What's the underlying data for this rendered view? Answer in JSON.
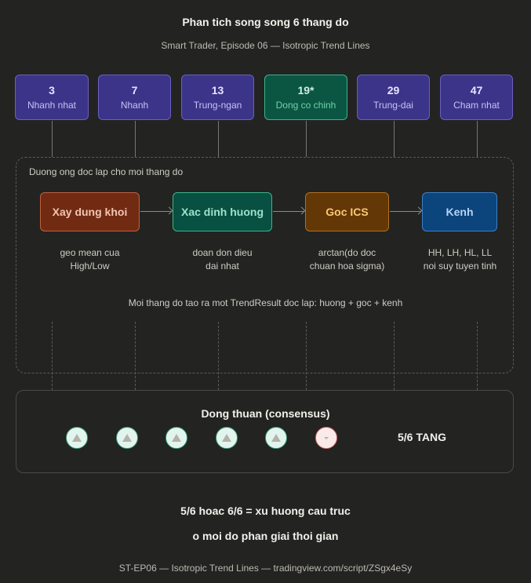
{
  "title": "Phan tich song song 6 thang do",
  "subtitle": "Smart Trader, Episode 06 — Isotropic Trend Lines",
  "scales": [
    {
      "value": "3",
      "label": "Nhanh nhat"
    },
    {
      "value": "7",
      "label": "Nhanh"
    },
    {
      "value": "13",
      "label": "Trung-ngan"
    },
    {
      "value": "19*",
      "label": "Dong co chinh"
    },
    {
      "value": "29",
      "label": "Trung-dai"
    },
    {
      "value": "47",
      "label": "Cham nhat"
    }
  ],
  "pipeline": {
    "label": "Duong ong doc lap cho moi thang do",
    "stages": [
      {
        "name": "Xay dung khoi",
        "desc1": "geo mean cua",
        "desc2": "High/Low",
        "color": "#712b13"
      },
      {
        "name": "Xac dinh huong",
        "desc1": "doan don dieu",
        "desc2": "dai nhat",
        "color": "#085041"
      },
      {
        "name": "Goc ICS",
        "desc1": "arctan(do doc",
        "desc2": "chuan hoa sigma)",
        "color": "#633806"
      },
      {
        "name": "Kenh",
        "desc1": "HH, LH, HL, LL",
        "desc2": "noi suy tuyen tinh",
        "color": "#0c447c"
      }
    ],
    "note": "Moi thang do tao ra mot TrendResult doc lap: huong + goc + kenh"
  },
  "consensus": {
    "title": "Dong thuan (consensus)",
    "votes": [
      "up",
      "up",
      "up",
      "up",
      "up",
      "down"
    ],
    "result": "5/6 TANG"
  },
  "conclusion1": "5/6 hoac 6/6 = xu huong cau truc",
  "conclusion2": "o moi do phan giai thoi gian",
  "footer": "ST-EP06 — Isotropic Trend Lines — tradingview.com/script/ZSgx4eSy"
}
